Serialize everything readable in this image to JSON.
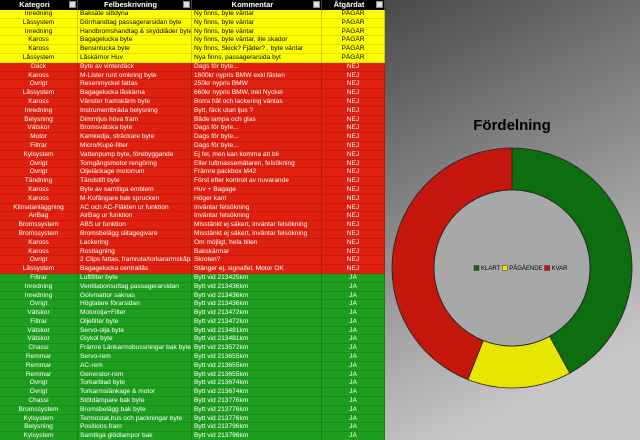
{
  "table": {
    "columns": [
      "Kategori",
      "Felbeskrivning",
      "Kommentar",
      "Åtgärdat"
    ],
    "groups": [
      {
        "color": "#ffff00",
        "text_color": "#000000",
        "rows": [
          [
            "Inredning",
            "Baksäte sittdyna",
            "Ny finns, byte väntar",
            "PÅGÅR"
          ],
          [
            "Låssystem",
            "Dörrhandtag passagerarsidan byte",
            "Ny finns, byte väntar",
            "PÅGÅR"
          ],
          [
            "Inredning",
            "Handbromshandtag & skyddlåder byte",
            "Ny finns, byte väntar",
            "PÅGÅR"
          ],
          [
            "Kaross",
            "Bagagelucka byte",
            "Ny finns, byte väntar, lite skador",
            "PÅGÅR"
          ],
          [
            "Kaross",
            "Bensinlucka byte",
            "Ny finns, Skick? Fjäder? , byte väntar",
            "PÅGÅR"
          ],
          [
            "Låssystem",
            "Låskärnor Huv",
            "Nya finns, passagerarsida byt",
            "PÅGÅR"
          ]
        ]
      },
      {
        "color": "#e0200e",
        "text_color": "#ffffff",
        "rows": [
          [
            "Däck",
            "Byte av vinterdäck",
            "Dags för byte...",
            "NEJ"
          ],
          [
            "Kaross",
            "M-Lister runt omkring byte",
            "1600kr nypris BMW exkl fästen",
            "NEJ"
          ],
          [
            "Övrigt",
            "Resenmyckel fattas",
            "250kr nypris BMW",
            "NEJ"
          ],
          [
            "Låssystem",
            "Bagagelucka låskärna",
            "660kr nypris BMW, inkl Nyckel",
            "NEJ"
          ],
          [
            "Kaross",
            "Vänster framskärm byte",
            "Borra hål och lackering väntas",
            "NEJ"
          ],
          [
            "Inredning",
            "Instrumentbräda belysning",
            "Bytt, fäck utan ljus ?",
            "NEJ"
          ],
          [
            "Belysning",
            "Dimmljus höva fram",
            "Både lampa och glas",
            "NEJ"
          ],
          [
            "Vätskor",
            "Bromsvätska byte",
            "Dags för byte...",
            "NEJ"
          ],
          [
            "Motor",
            "Kamkedja, sträckare byte",
            "Dags för byte...",
            "NEJ"
          ],
          [
            "Filtrar",
            "Micro/Kupé-filter",
            "Dags för byte...",
            "NEJ"
          ],
          [
            "Kylsystem",
            "Vattenpump byte, förebyggande",
            "Ej fel, men kan komma att bli",
            "NEJ"
          ],
          [
            "Övrigt",
            "Tomgångsmotor rengöring",
            "Eller luftmassemätaren, felsökning",
            "NEJ"
          ],
          [
            "Övrigt",
            "Oljeläckage motorrum",
            "Främre packbox M42",
            "NEJ"
          ],
          [
            "Tändning",
            "Tändstift byte",
            "Först efter kontroll av nuvarande",
            "NEJ"
          ],
          [
            "Kaross",
            "Byte av samtliga emblem",
            "Huv + Bagage",
            "NEJ"
          ],
          [
            "Kaross",
            "M-Kofångare bak sprucken",
            "Höger kant",
            "NEJ"
          ],
          [
            "Klimatanläggning",
            "AC och AC-Fläkten ur funktion",
            "Inväntar felsökning",
            "NEJ"
          ],
          [
            "AirBag",
            "AirBag ur funktion",
            "Inväntar felsökning",
            "NEJ"
          ],
          [
            "Bromssystem",
            "ABS ur funktion",
            "Misstänkt ej säkert, inväntar felsökning",
            "NEJ"
          ],
          [
            "Bromssystem",
            "Bromsbelägg slitagegivare",
            "Misstänkt ej säkert, inväntar felsökning",
            "NEJ"
          ],
          [
            "Kaross",
            "Lackering",
            "Om möjligt, hela bilen",
            "NEJ"
          ],
          [
            "Kaross",
            "Rostlagning",
            "Bakskärmar",
            "NEJ"
          ],
          [
            "Övrigt",
            "2 Clips fattas, framruta/torkararmskåpa",
            "Skroten?",
            "NEJ"
          ],
          [
            "Låssystem",
            "Bagagelucka centrallås",
            "Stänger ej, signalfel, Motor OK",
            "NEJ"
          ]
        ]
      },
      {
        "color": "#1e9e1e",
        "text_color": "#ffffff",
        "rows": [
          [
            "Filtrar",
            "Luftfilter byte",
            "Bytt vid 213425km",
            "JA"
          ],
          [
            "Inredning",
            "Ventilationsuttag passagerarsidan",
            "Bytt vid 213436km",
            "JA"
          ],
          [
            "Inredning",
            "Golvmattor saknas",
            "Bytt vid 213436km",
            "JA"
          ],
          [
            "Övrigt",
            "Högtalare förarsidan",
            "Bytt vid 213436km",
            "JA"
          ],
          [
            "Vätskor",
            "Motorolja+Filter",
            "Bytt vid 213472km",
            "JA"
          ],
          [
            "Filtrar",
            "Oljefilter byte",
            "Bytt vid 213472km",
            "JA"
          ],
          [
            "Vätskor",
            "Servo-olja byte",
            "Bytt vid 213481km",
            "JA"
          ],
          [
            "Vätskor",
            "Glykol byte",
            "Bytt vid 213481km",
            "JA"
          ],
          [
            "Chassi",
            "Främre Länkarmsbussningar bak byte",
            "Bytt vid 213572km",
            "JA"
          ],
          [
            "Remmar",
            "Servo-rem",
            "Bytt vid 213655km",
            "JA"
          ],
          [
            "Remmar",
            "AC-rem",
            "Bytt vid 213655km",
            "JA"
          ],
          [
            "Remmar",
            "Generator-rem",
            "Bytt vid 213655km",
            "JA"
          ],
          [
            "Övrigt",
            "Torkarblad byte",
            "Bytt vid 213674km",
            "JA"
          ],
          [
            "Övrigt",
            "Torkarmslänkage & motor",
            "Bytt vid 213674km",
            "JA"
          ],
          [
            "Chassi",
            "Stötdämpare bak byte",
            "Bytt vid 213776km",
            "JA"
          ],
          [
            "Bromssystem",
            "Bromsbelägg bak byte",
            "Bytt vid 213776km",
            "JA"
          ],
          [
            "Kylsystem",
            "Termostat,hus och packningar byte",
            "Bytt vid 213776km",
            "JA"
          ],
          [
            "Belysning",
            "Positions fram",
            "Bytt vid 213796km",
            "JA"
          ],
          [
            "Kylsystem",
            "Samtliga glödlampor bak",
            "Bytt vid 213796km",
            "JA"
          ]
        ]
      }
    ]
  },
  "chart_data": {
    "type": "donut",
    "title": "Fördelning",
    "categories": [
      "KLART",
      "PÅGÅENDE",
      "KVAR"
    ],
    "values": [
      42,
      14,
      44
    ],
    "colors": [
      "#0d6e10",
      "#e6e600",
      "#c4160c"
    ]
  }
}
